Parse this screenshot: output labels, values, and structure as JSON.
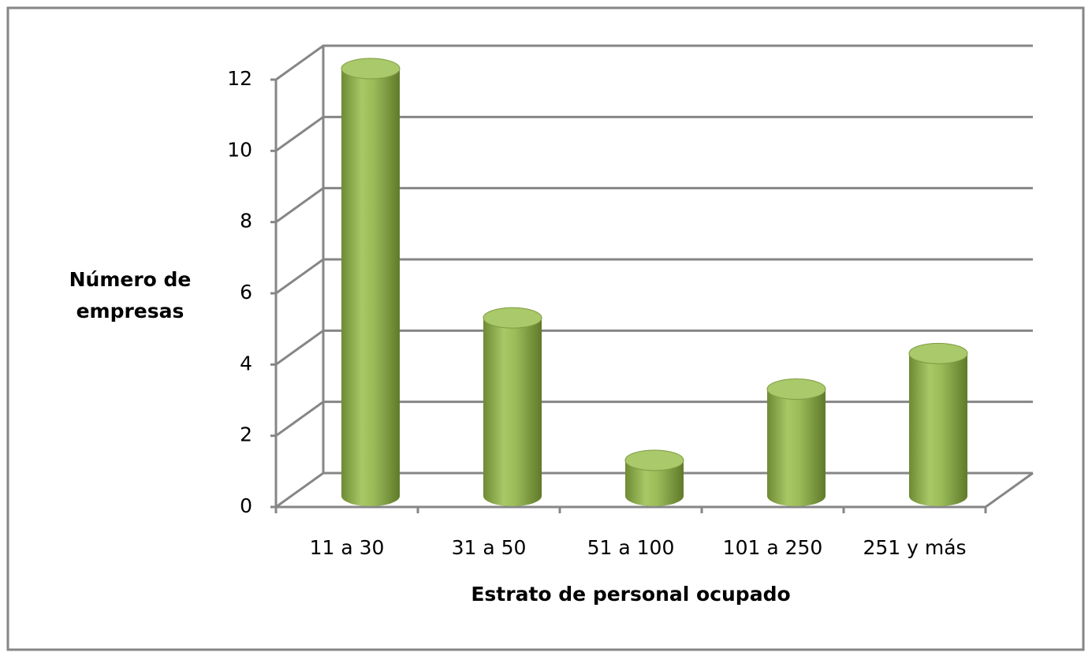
{
  "chart_data": {
    "type": "bar3d",
    "y_label": "Número de empresas",
    "x_label": "Estrato de personal ocupado",
    "categories": [
      "11 a 30",
      "31 a 50",
      "51 a 100",
      "101 a 250",
      "251 y más"
    ],
    "values": [
      12,
      5,
      1,
      3,
      4
    ],
    "color": "#9bbb59",
    "ylim": [
      0,
      12
    ],
    "yticks": [
      0,
      2,
      4,
      6,
      8,
      10,
      12
    ],
    "grid": true
  }
}
